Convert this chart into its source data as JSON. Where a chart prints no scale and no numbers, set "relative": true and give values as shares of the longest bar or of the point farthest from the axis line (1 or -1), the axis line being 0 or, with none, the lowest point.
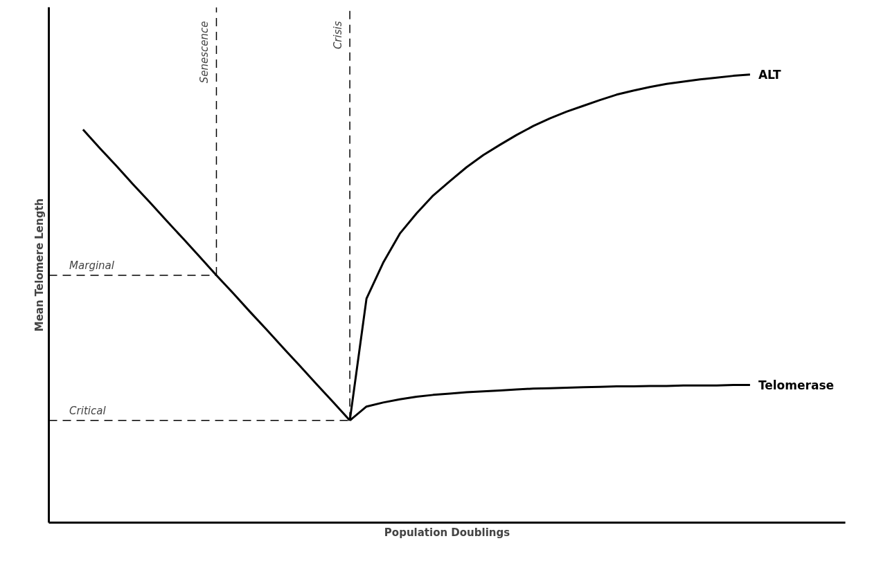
{
  "chart_data": {
    "type": "line",
    "relative": true,
    "xlabel": "Population Doublings",
    "ylabel": "Mean Telomere Length",
    "marker": "none",
    "line_style": "solid",
    "categories": [
      null,
      null,
      null,
      null,
      null,
      null,
      null,
      null,
      null,
      null,
      null,
      null,
      null,
      null,
      null,
      null,
      null,
      null,
      null,
      null,
      null,
      null,
      null,
      null,
      null,
      null,
      null,
      null,
      null,
      null,
      null,
      null,
      null,
      null,
      null,
      null,
      null,
      null,
      null,
      null,
      null
    ],
    "series": [
      {
        "color": "#000000",
        "values": [
          0.877,
          0.836,
          0.796,
          0.755,
          0.715,
          0.674,
          0.634,
          0.593,
          0.552,
          0.512,
          0.471,
          0.431,
          0.39,
          0.35,
          0.309,
          0.269,
          0.228,
          null,
          null,
          null,
          null,
          null,
          null,
          null,
          null,
          null,
          null,
          null,
          null,
          null,
          null,
          null,
          null,
          null,
          null,
          null,
          null,
          null,
          null,
          null,
          null
        ]
      },
      {
        "name": "ALT",
        "color": "#000000",
        "values": [
          null,
          null,
          null,
          null,
          null,
          null,
          null,
          null,
          null,
          null,
          null,
          null,
          null,
          null,
          null,
          null,
          0.228,
          0.5,
          0.58,
          0.645,
          0.69,
          0.73,
          0.762,
          0.793,
          0.82,
          0.843,
          0.865,
          0.885,
          0.902,
          0.917,
          0.93,
          0.943,
          0.955,
          0.964,
          0.972,
          0.979,
          0.984,
          0.989,
          0.993,
          0.997,
          1.0
        ]
      },
      {
        "name": "Telomerase",
        "color": "#000000",
        "values": [
          null,
          null,
          null,
          null,
          null,
          null,
          null,
          null,
          null,
          null,
          null,
          null,
          null,
          null,
          null,
          null,
          0.228,
          0.259,
          0.268,
          0.275,
          0.281,
          0.285,
          0.288,
          0.291,
          0.293,
          0.295,
          0.297,
          0.299,
          0.3,
          0.301,
          0.302,
          0.303,
          0.304,
          0.304,
          0.305,
          0.305,
          0.306,
          0.306,
          0.306,
          0.307,
          0.307
        ]
      }
    ],
    "ref_lines": [
      {
        "axis": "y",
        "value": 0.552,
        "label": "Marginal",
        "line_style": "dashed"
      },
      {
        "axis": "y",
        "value": 0.228,
        "label": "Critical",
        "line_style": "dashed"
      },
      {
        "axis": "x",
        "label": "Senescence",
        "line_style": "dashed"
      },
      {
        "axis": "x",
        "label": "Crisis",
        "line_style": "dashed"
      }
    ]
  }
}
